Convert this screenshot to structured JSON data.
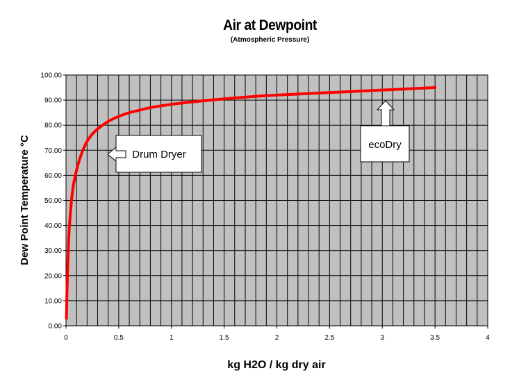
{
  "chart_data": {
    "type": "line",
    "title": "Air at Dewpoint",
    "subtitle": "(Atmospheric Pressure)",
    "xlabel": "kg H2O / kg dry air",
    "ylabel": "Dew Point Temperature °C",
    "xlim": [
      0,
      4
    ],
    "ylim": [
      0,
      100
    ],
    "x_ticks": [
      0,
      0.5,
      1,
      1.5,
      2,
      2.5,
      3,
      3.5,
      4
    ],
    "x_tick_labels": [
      "0",
      "0.5",
      "1",
      "1.5",
      "2",
      "2.5",
      "3",
      "3.5",
      "4"
    ],
    "y_ticks": [
      0,
      10,
      20,
      30,
      40,
      50,
      60,
      70,
      80,
      90,
      100
    ],
    "y_tick_labels": [
      "0.00",
      "10.00",
      "20.00",
      "30.00",
      "40.00",
      "50.00",
      "60.00",
      "70.00",
      "80.00",
      "90.00",
      "100.00"
    ],
    "x_minor_step": 0.1,
    "grid": true,
    "background_color": "#c0c0c0",
    "series": [
      {
        "color": "#ff0000",
        "x": [
          0.004,
          0.01,
          0.02,
          0.03,
          0.05,
          0.07,
          0.1,
          0.13,
          0.16,
          0.2,
          0.25,
          0.3,
          0.4,
          0.5,
          0.6,
          0.7,
          0.8,
          1.0,
          1.2,
          1.5,
          1.8,
          2.0,
          2.5,
          3.0,
          3.5
        ],
        "y": [
          3,
          15,
          28,
          38,
          49,
          56,
          62,
          66.5,
          70,
          73.5,
          76.5,
          78.5,
          81.5,
          83.5,
          85,
          86,
          87,
          88.3,
          89.3,
          90.5,
          91.5,
          92,
          93,
          94,
          95
        ]
      }
    ],
    "annotations": [
      {
        "text": "Drum Dryer",
        "arrow": "left"
      },
      {
        "text": "ecoDry",
        "arrow": "up"
      }
    ]
  }
}
